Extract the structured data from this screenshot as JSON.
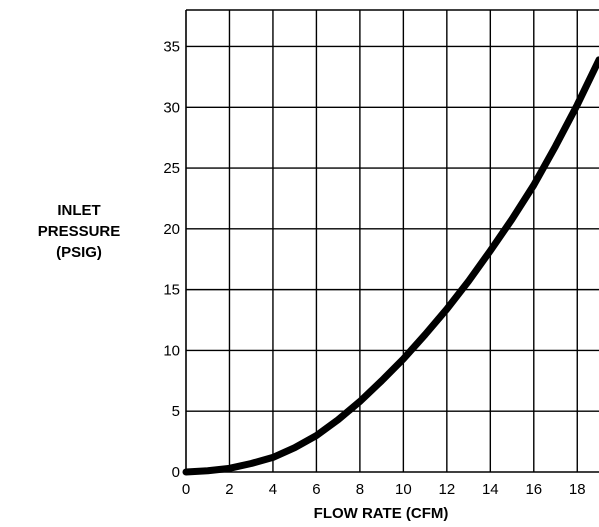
{
  "chart_data": {
    "type": "line",
    "title": "",
    "xlabel": "FLOW RATE (CFM)",
    "ylabel_lines": [
      "INLET",
      "PRESSURE",
      "(PSIG)"
    ],
    "xlim": [
      0,
      19
    ],
    "ylim": [
      0,
      38
    ],
    "x_ticks": [
      0,
      2,
      4,
      6,
      8,
      10,
      12,
      14,
      16,
      18
    ],
    "y_ticks": [
      0,
      5,
      10,
      15,
      20,
      25,
      30,
      35
    ],
    "grid": true,
    "series": [
      {
        "color": "#000000",
        "x": [
          0,
          1,
          2,
          3,
          4,
          5,
          6,
          7,
          8,
          9,
          10,
          11,
          12,
          13,
          14,
          15,
          16,
          17,
          18,
          19
        ],
        "y": [
          0,
          0.1,
          0.3,
          0.7,
          1.2,
          2.0,
          3.0,
          4.3,
          5.8,
          7.5,
          9.3,
          11.3,
          13.4,
          15.7,
          18.2,
          20.8,
          23.6,
          26.8,
          30.2,
          33.9
        ]
      }
    ]
  }
}
